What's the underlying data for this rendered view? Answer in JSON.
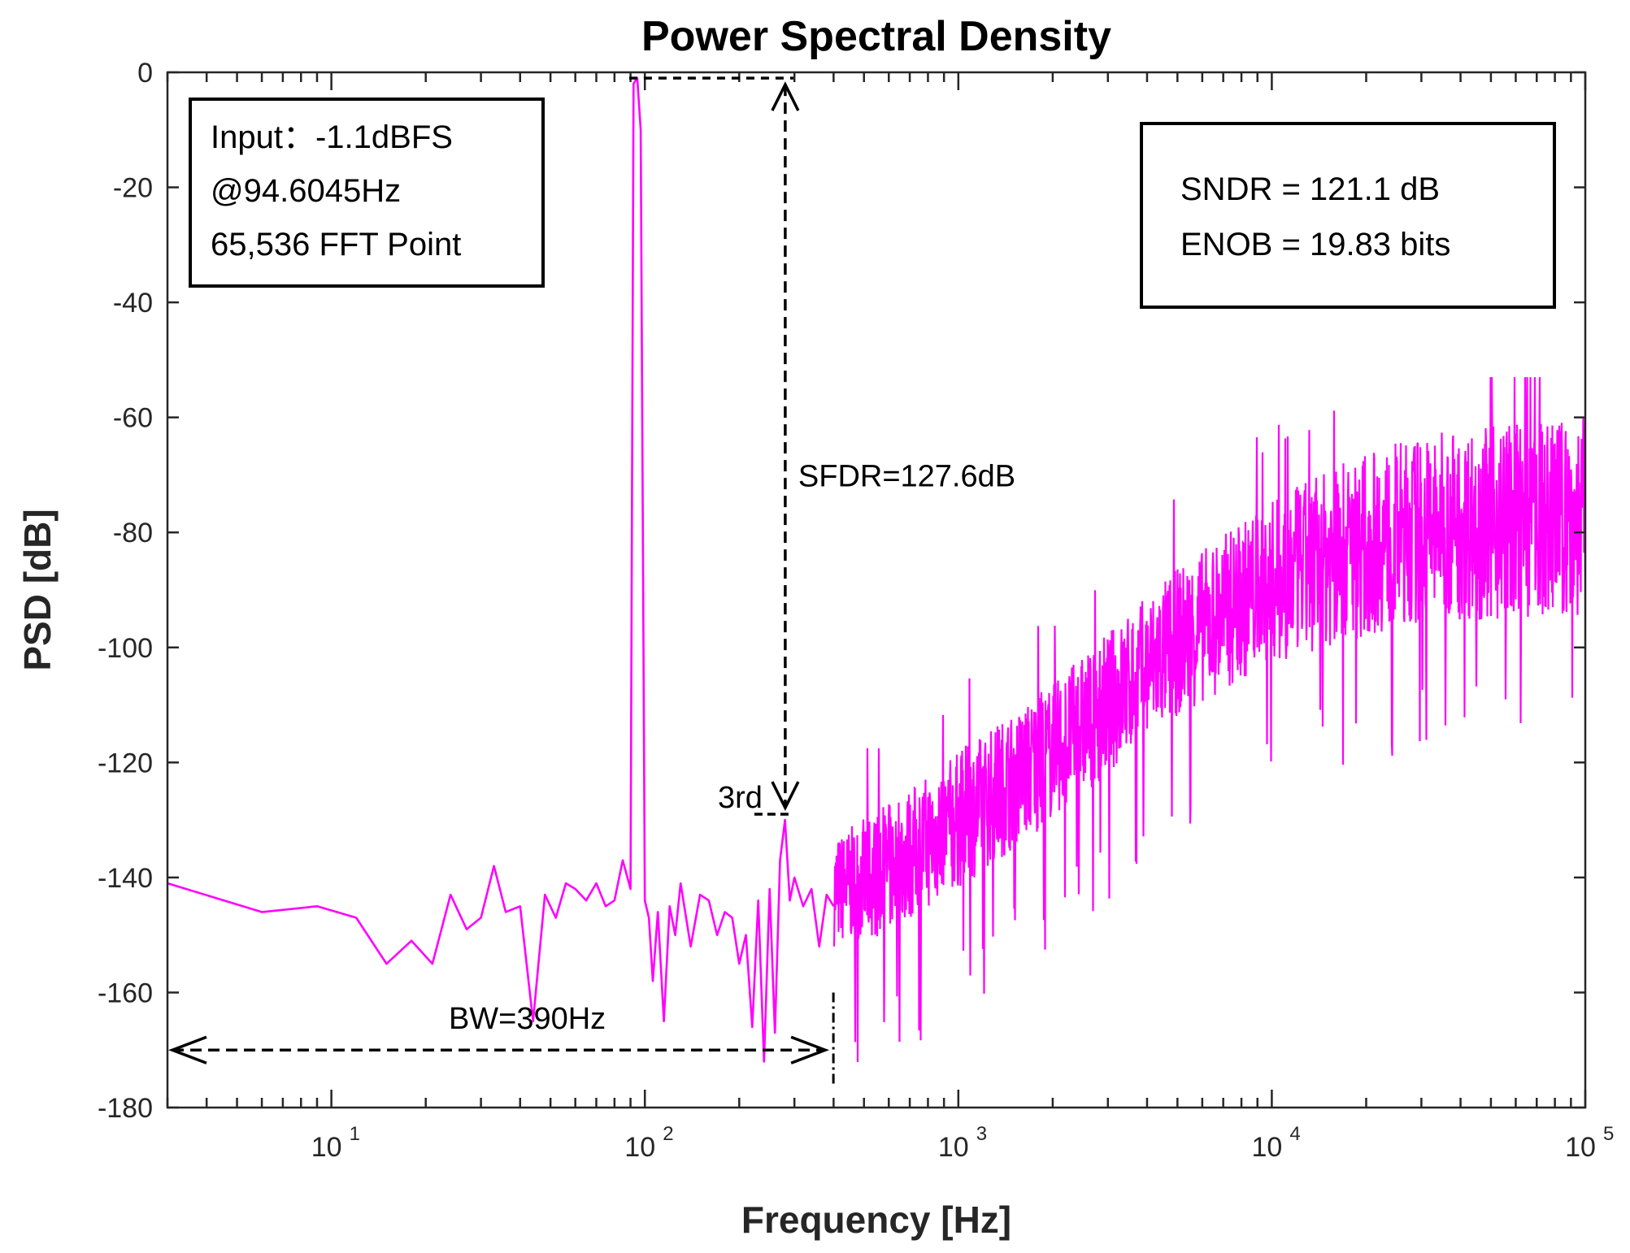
{
  "chart_data": {
    "type": "line",
    "title": "Power Spectral Density",
    "xlabel": "Frequency [Hz]",
    "ylabel": "PSD [dB]",
    "xscale": "log",
    "xlim": [
      3,
      100000
    ],
    "ylim": [
      -180,
      0
    ],
    "yticks": [
      0,
      -20,
      -40,
      -60,
      -80,
      -100,
      -120,
      -140,
      -160,
      -180
    ],
    "ytick_labels": [
      "0",
      "-20",
      "-40",
      "-60",
      "-80",
      "-100",
      "-120",
      "-140",
      "-160",
      "-180"
    ],
    "xticks": [
      {
        "value": 10,
        "base": "10",
        "exp": "1"
      },
      {
        "value": 100,
        "base": "10",
        "exp": "2"
      },
      {
        "value": 1000,
        "base": "10",
        "exp": "3"
      },
      {
        "value": 10000,
        "base": "10",
        "exp": "4"
      },
      {
        "value": 100000,
        "base": "10",
        "exp": "5"
      }
    ],
    "grid": false,
    "series": [
      {
        "name": "PSD",
        "color": "#ff00ff",
        "x": [
          3,
          6,
          9,
          12,
          15,
          18,
          21,
          24,
          27,
          30,
          33,
          36,
          40,
          44,
          48,
          52,
          56,
          60,
          65,
          70,
          75,
          80,
          85,
          90,
          92,
          94.6,
          97,
          100,
          103,
          106,
          110,
          115,
          120,
          125,
          130,
          140,
          150,
          160,
          170,
          180,
          190,
          200,
          210,
          220,
          230,
          240,
          250,
          260,
          270,
          280,
          290,
          300,
          320,
          340,
          360,
          380,
          400
        ],
        "y": [
          -141,
          -146,
          -145,
          -147,
          -155,
          -151,
          -155,
          -143,
          -149,
          -147,
          -138,
          -146,
          -145,
          -165,
          -143,
          -147,
          -141,
          -142,
          -144,
          -141,
          -145,
          -144,
          -137,
          -142,
          -2,
          -1,
          -10,
          -144,
          -147,
          -158,
          -146,
          -165,
          -145,
          -150,
          -141,
          -152,
          -143,
          -144,
          -150,
          -146,
          -147,
          -155,
          -150,
          -166,
          -144,
          -172,
          -142,
          -167,
          -137,
          -130,
          -144,
          -140,
          -145,
          -142,
          -152,
          -143,
          -145
        ]
      }
    ],
    "noise_envelope": {
      "x": [
        400,
        600,
        1000,
        2000,
        5000,
        10000,
        20000,
        30000,
        50000,
        100000
      ],
      "upper": [
        -133,
        -127,
        -118,
        -106,
        -86,
        -74,
        -66,
        -63,
        -61,
        -60
      ],
      "lower": [
        -152,
        -150,
        -142,
        -130,
        -112,
        -103,
        -98,
        -96,
        -95,
        -95
      ],
      "spike_high": -53,
      "spike_low": -120
    },
    "annotations": {
      "sfdr": "SFDR=127.6dB",
      "third": "3rd",
      "bw": "BW=390Hz",
      "fundamental_db": -1,
      "third_db": -129,
      "third_freq_hz": 283.8,
      "bw_db": -170,
      "bw_hz": 390
    },
    "input_box": {
      "line1": "Input：-1.1dBFS",
      "line2": "@94.6045Hz",
      "line3": "65,536 FFT Point"
    },
    "result_box": {
      "line1": "SNDR = 121.1 dB",
      "line2": "ENOB = 19.83 bits"
    }
  }
}
